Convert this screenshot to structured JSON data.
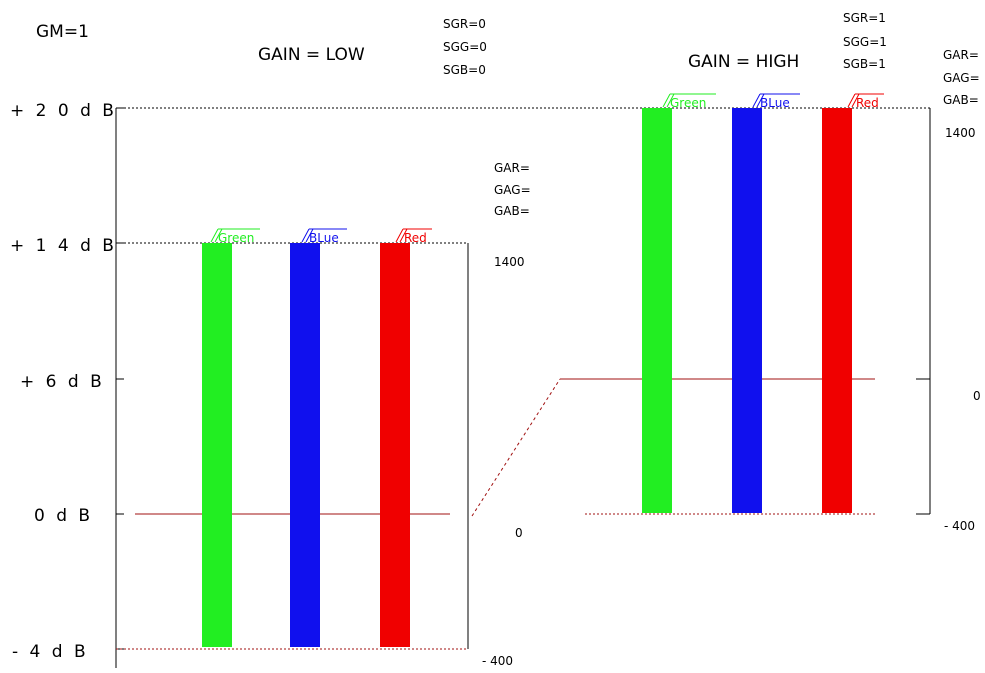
{
  "header": {
    "gm": "GM=1",
    "low_title": "GAIN = LOW",
    "high_title": "GAIN = HIGH"
  },
  "db_labels": [
    "+ 2 0 d B",
    "+ 1 4 d B",
    "+ 6 d B",
    "0 d B",
    "- 4 d B"
  ],
  "low_panel": {
    "sg": [
      "SGR=0",
      "SGG=0",
      "SGB=0"
    ],
    "ga": [
      "GAR=",
      "GAG=",
      "GAB="
    ],
    "scale_top": "1400",
    "scale_zero": "0",
    "scale_bottom": "- 400",
    "bars": [
      {
        "label": "Green",
        "color": "#22ee22"
      },
      {
        "label": "BLue",
        "color": "#1010ee"
      },
      {
        "label": "Red",
        "color": "#f00000"
      }
    ]
  },
  "high_panel": {
    "sg": [
      "SGR=1",
      "SGG=1",
      "SGB=1"
    ],
    "ga": [
      "GAR=",
      "GAG=",
      "GAB="
    ],
    "scale_top": "1400",
    "scale_zero": "0",
    "scale_bottom": "- 400",
    "bars": [
      {
        "label": "Green",
        "color": "#22ee22"
      },
      {
        "label": "BLue",
        "color": "#1010ee"
      },
      {
        "label": "Red",
        "color": "#f00000"
      }
    ]
  },
  "colors": {
    "line_red": "#a01010",
    "green": "#22ee22",
    "blue": "#1010ee",
    "red": "#f00000"
  }
}
